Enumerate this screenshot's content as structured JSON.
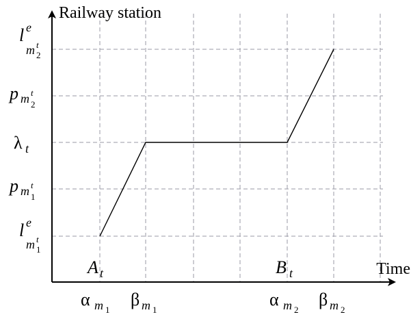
{
  "diagram": {
    "y_axis_label": "Railway station",
    "x_axis_label": "Time",
    "y_ticks": [
      {
        "id": "l-e-m1",
        "base": "l",
        "sup": "e",
        "sub": "m",
        "subsub": "1",
        "subsup": "t",
        "italic": true
      },
      {
        "id": "p-m1",
        "base": "p",
        "sup": "",
        "sub": "m",
        "subsub": "1",
        "subsup": "t",
        "italic": true
      },
      {
        "id": "lambda-t",
        "base": "λ",
        "sup": "",
        "sub": "t",
        "subsub": "",
        "subsup": "",
        "italic": false
      },
      {
        "id": "p-m2",
        "base": "p",
        "sup": "",
        "sub": "m",
        "subsub": "2",
        "subsup": "t",
        "italic": true
      },
      {
        "id": "l-e-m2",
        "base": "l",
        "sup": "e",
        "sub": "m",
        "subsub": "2",
        "subsup": "t",
        "italic": true
      }
    ],
    "x_ticks": [
      {
        "id": "alpha-m1",
        "base": "α",
        "sub": "m",
        "subsub": "1"
      },
      {
        "id": "beta-m1",
        "base": "β",
        "sub": "m",
        "subsub": "1"
      },
      {
        "id": "alpha-m2",
        "base": "α",
        "sub": "m",
        "subsub": "2"
      },
      {
        "id": "beta-m2",
        "base": "β",
        "sub": "m",
        "subsub": "2"
      }
    ],
    "point_labels": [
      {
        "id": "A-t",
        "base": "A",
        "sub": "t"
      },
      {
        "id": "B-t",
        "base": "B",
        "sub": "t"
      }
    ],
    "path_levels": [
      "l-e-m1",
      "lambda-t",
      "lambda-t",
      "l-e-m2"
    ],
    "grid": "dashed",
    "colors": {
      "line": "#000000",
      "grid": "#9a9aa6",
      "axis": "#000000"
    }
  }
}
